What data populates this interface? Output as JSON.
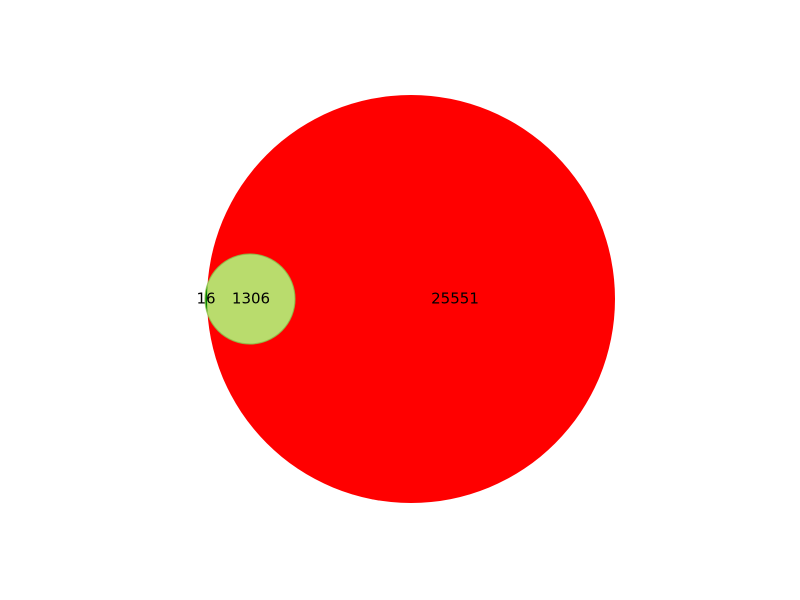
{
  "chart_data": {
    "type": "venn",
    "sets": [
      {
        "id": "set-a",
        "color": "#008000"
      },
      {
        "id": "set-b",
        "color": "#ff0000"
      }
    ],
    "regions": [
      {
        "id": "a-only",
        "sets": [
          "set-a"
        ],
        "value": 16
      },
      {
        "id": "a-and-b",
        "sets": [
          "set-a",
          "set-b"
        ],
        "value": 1306
      },
      {
        "id": "b-only",
        "sets": [
          "set-b"
        ],
        "value": 25551
      }
    ],
    "region_labels": {
      "a_only": "16",
      "a_and_b": "1306",
      "b_only": "25551"
    },
    "colors": {
      "set_a": "#008000",
      "set_b": "#ff0000",
      "overlap": "#b9dc6d"
    }
  }
}
